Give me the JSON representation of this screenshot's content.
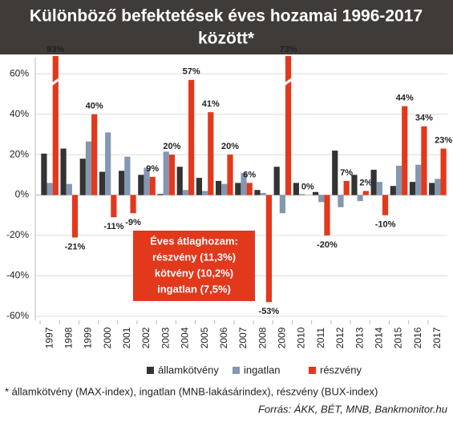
{
  "chart_data": {
    "type": "bar",
    "title": "Különböző befektetések éves hozamai 1996-2017",
    "title_line2": "között*",
    "categories": [
      "1997",
      "1998",
      "1999",
      "2000",
      "2001",
      "2002",
      "2003",
      "2004",
      "2005",
      "2006",
      "2007",
      "2008",
      "2009",
      "2010",
      "2011",
      "2012",
      "2013",
      "2014",
      "2015",
      "2016",
      "2017"
    ],
    "series": [
      {
        "name": "államkötvény",
        "color": "#333333",
        "values": [
          20.5,
          23,
          18,
          11.5,
          12,
          10,
          0.5,
          14,
          8.5,
          7,
          6,
          2.5,
          14,
          6,
          1.5,
          22,
          10,
          12.5,
          4.5,
          6.5,
          6
        ]
      },
      {
        "name": "ingatlan",
        "color": "#8497b0",
        "values": [
          6,
          5.5,
          26.5,
          31,
          19,
          13.5,
          21.5,
          2.5,
          2,
          5.5,
          11,
          1,
          -9,
          0.5,
          -3.5,
          -6,
          -3,
          6.5,
          14.5,
          15,
          8
        ]
      },
      {
        "name": "részvény",
        "color": "#e2381c",
        "values": [
          93,
          -21,
          40,
          -11,
          -9,
          9,
          20,
          57,
          41,
          20,
          6,
          -53,
          73,
          0,
          -20,
          7,
          2,
          -10,
          44,
          34,
          23
        ],
        "value_labels": [
          "93%",
          "-21%",
          "40%",
          "-11%",
          "-9%",
          "9%",
          "20%",
          "57%",
          "41%",
          "20%",
          "6%",
          "-53%",
          "73%",
          "0%",
          "-20%",
          "7%",
          "2%",
          "-10%",
          "44%",
          "34%",
          "23%"
        ]
      }
    ],
    "ylim": [
      -62,
      68
    ],
    "yticks": [
      {
        "value": -60,
        "label": "-60%"
      },
      {
        "value": -40,
        "label": "-40%"
      },
      {
        "value": -20,
        "label": "-20%"
      },
      {
        "value": 0,
        "label": "0%"
      },
      {
        "value": 20,
        "label": "20%"
      },
      {
        "value": 40,
        "label": "40%"
      },
      {
        "value": 60,
        "label": "60%"
      }
    ],
    "grid": true,
    "annotation": [
      "Éves átlaghozam:",
      "részvény (11,3%)",
      "kötvény (10,2%)",
      "ingatlan (7,5%)"
    ],
    "footnote": "* államkötvény (MAX-index), ingatlan (MNB-lakásárindex), részvény (BUX-index)",
    "source": "Forrás: ÁKK, BÉT, MNB, Bankmonitor.hu"
  }
}
